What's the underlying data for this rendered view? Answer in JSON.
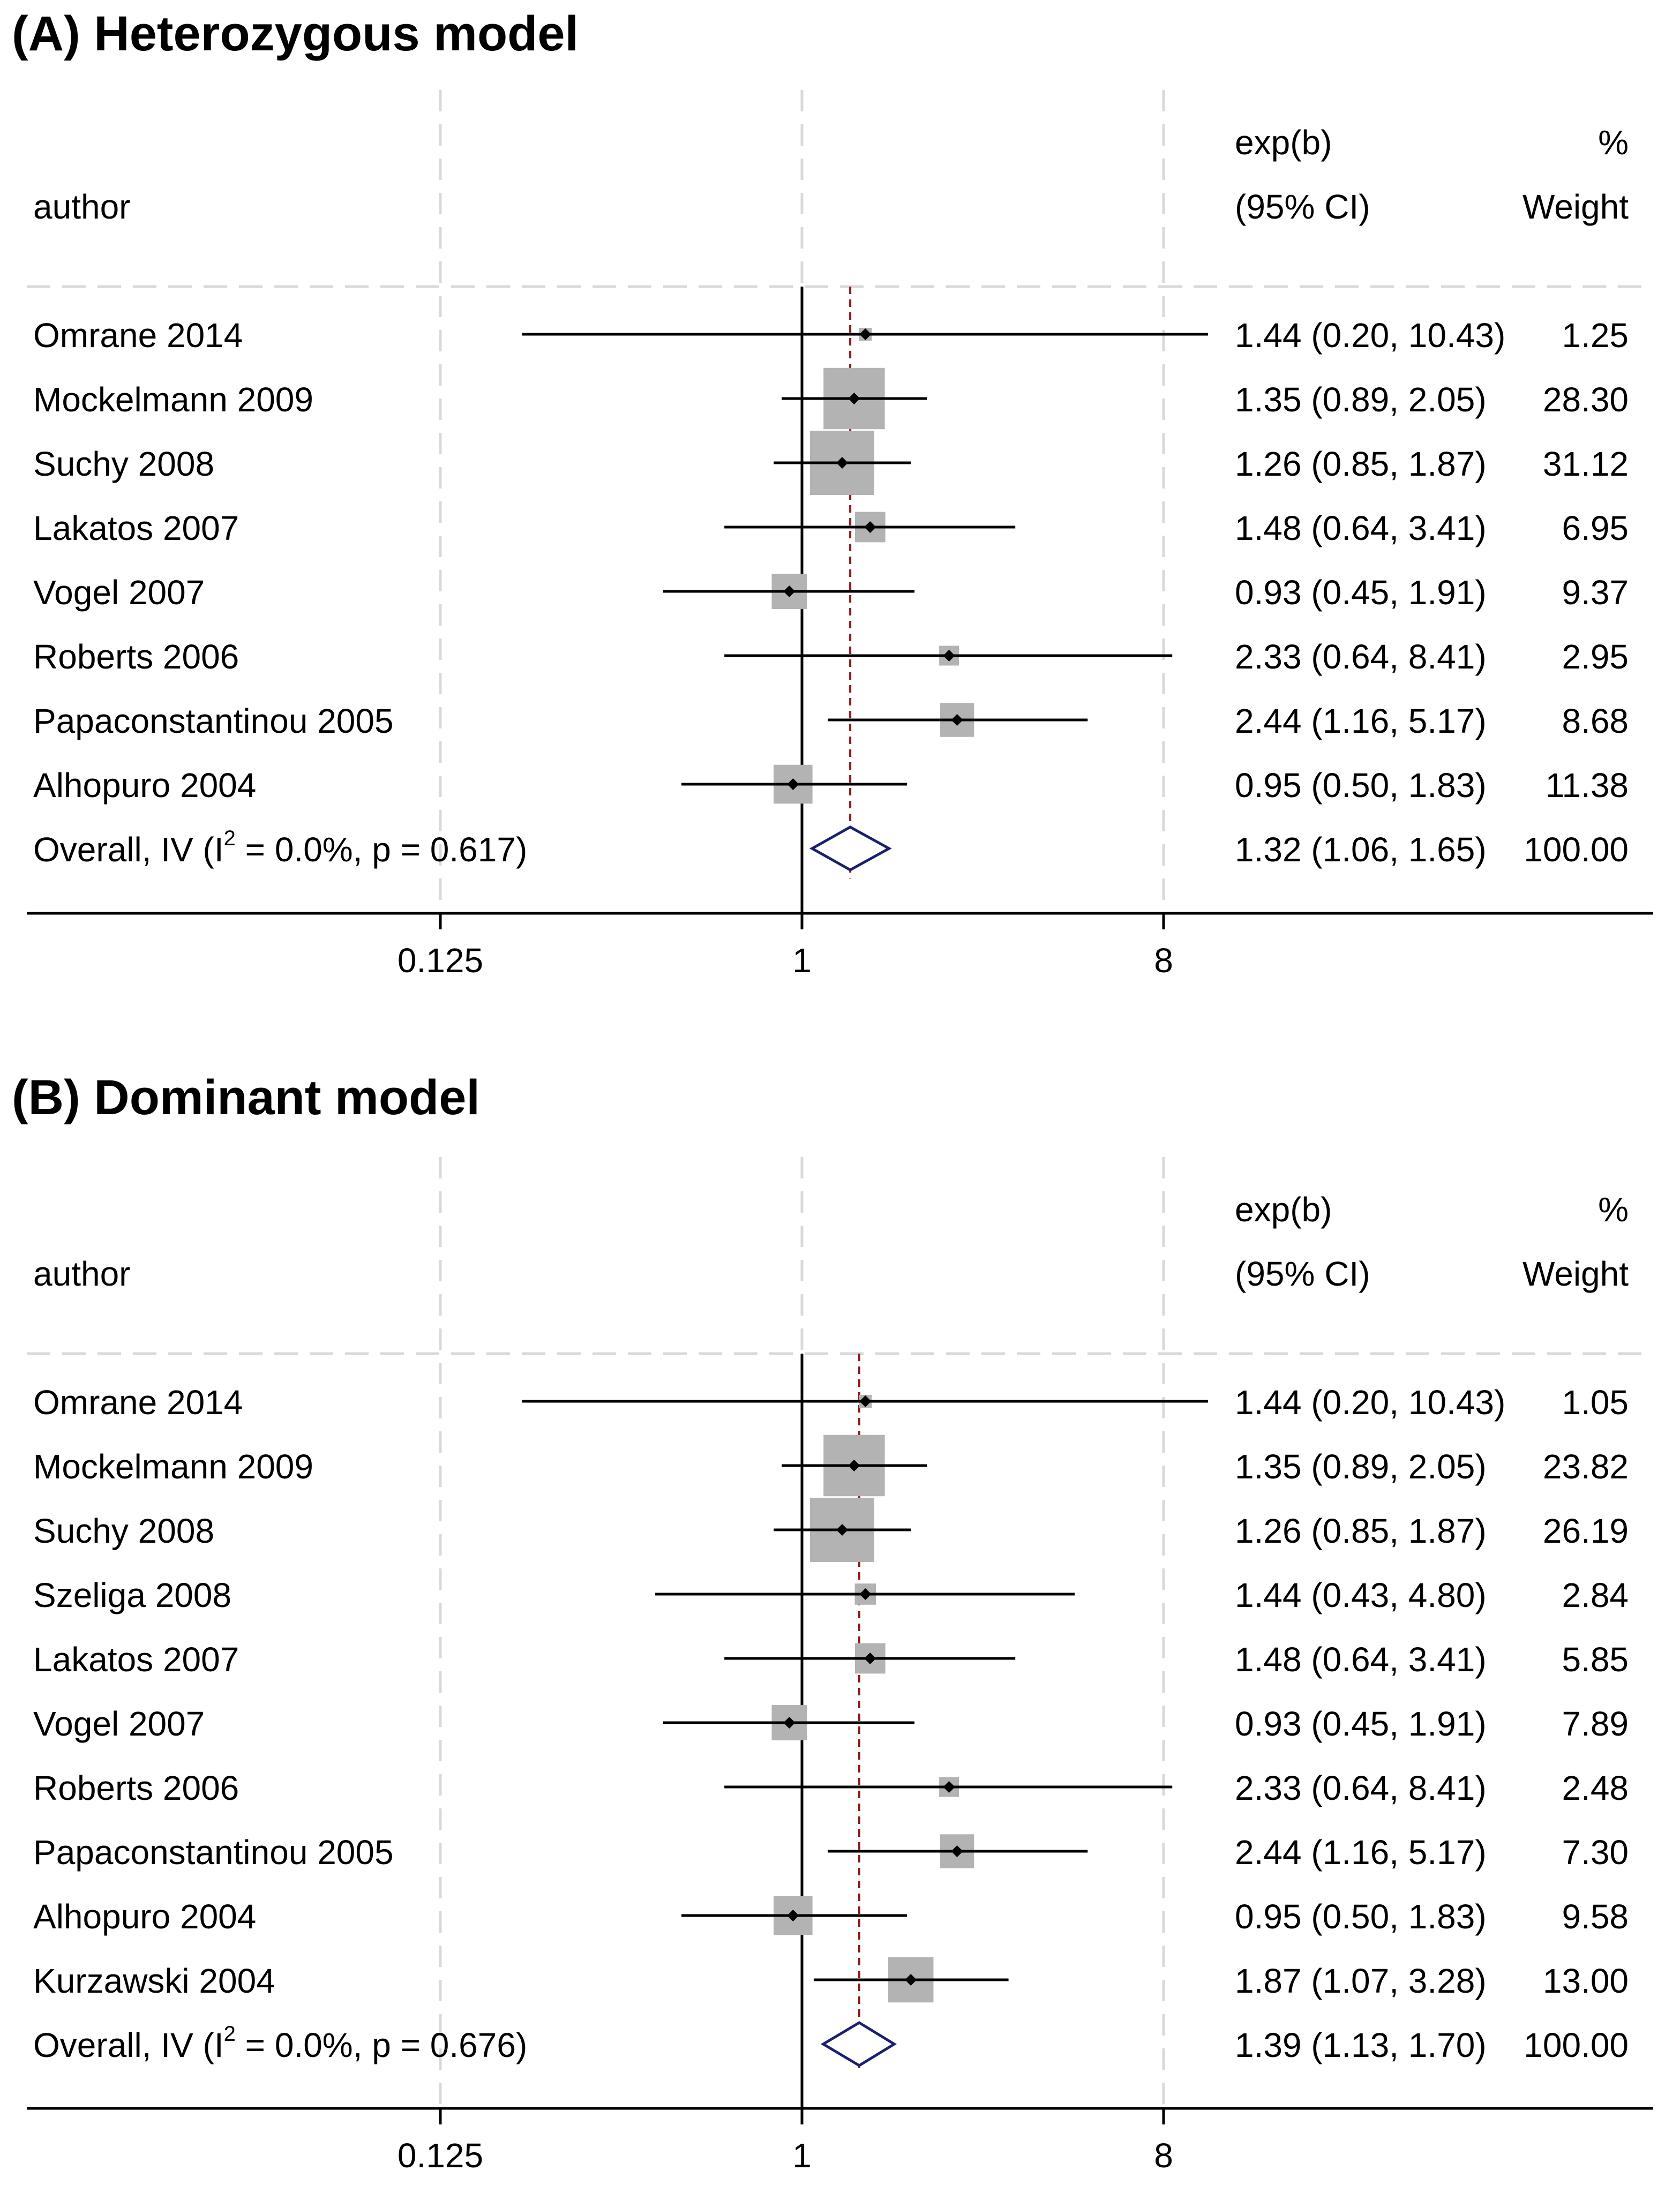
{
  "colors": {
    "ci_line": "#000000",
    "weight_box": "#b3b3b3",
    "point": "#000000",
    "overall_diamond": "#1a1f6e",
    "overall_line": "#8b1a1a",
    "gridline": "#d9d9d9"
  },
  "chart_data": [
    {
      "type": "forest",
      "title": "(A) Heterozygous model",
      "header": {
        "study_col": "author",
        "effect_col_1": "exp(b)",
        "effect_col_2": "(95% CI)",
        "weight_col_1": "%",
        "weight_col_2": "Weight"
      },
      "x_scale": "log2",
      "xlim": [
        0.0625,
        14
      ],
      "ticks": [
        {
          "value": 0.125,
          "label": "0.125"
        },
        {
          "value": 1,
          "label": "1"
        },
        {
          "value": 8,
          "label": "8"
        }
      ],
      "studies": [
        {
          "author": "Omrane 2014",
          "es": 1.44,
          "lo": 0.2,
          "hi": 10.43,
          "ci_text": "1.44 (0.20, 10.43)",
          "weight": 1.25,
          "weight_text": "1.25"
        },
        {
          "author": "Mockelmann 2009",
          "es": 1.35,
          "lo": 0.89,
          "hi": 2.05,
          "ci_text": "1.35 (0.89, 2.05)",
          "weight": 28.3,
          "weight_text": "28.30"
        },
        {
          "author": "Suchy 2008",
          "es": 1.26,
          "lo": 0.85,
          "hi": 1.87,
          "ci_text": "1.26 (0.85, 1.87)",
          "weight": 31.12,
          "weight_text": "31.12"
        },
        {
          "author": "Lakatos 2007",
          "es": 1.48,
          "lo": 0.64,
          "hi": 3.41,
          "ci_text": "1.48 (0.64, 3.41)",
          "weight": 6.95,
          "weight_text": "6.95"
        },
        {
          "author": "Vogel 2007",
          "es": 0.93,
          "lo": 0.45,
          "hi": 1.91,
          "ci_text": "0.93 (0.45, 1.91)",
          "weight": 9.37,
          "weight_text": "9.37"
        },
        {
          "author": "Roberts 2006",
          "es": 2.33,
          "lo": 0.64,
          "hi": 8.41,
          "ci_text": "2.33 (0.64, 8.41)",
          "weight": 2.95,
          "weight_text": "2.95"
        },
        {
          "author": "Papaconstantinou 2005",
          "es": 2.44,
          "lo": 1.16,
          "hi": 5.17,
          "ci_text": "2.44 (1.16, 5.17)",
          "weight": 8.68,
          "weight_text": "8.68"
        },
        {
          "author": "Alhopuro 2004",
          "es": 0.95,
          "lo": 0.5,
          "hi": 1.83,
          "ci_text": "0.95 (0.50, 1.83)",
          "weight": 11.38,
          "weight_text": "11.38"
        }
      ],
      "overall": {
        "label_pre": "Overall, IV (I",
        "label_sup": "2",
        "label_post": " = 0.0%, p = 0.617)",
        "es": 1.32,
        "lo": 1.06,
        "hi": 1.65,
        "ci_text": "1.32 (1.06, 1.65)",
        "weight_text": "100.00"
      }
    },
    {
      "type": "forest",
      "title": "(B) Dominant model",
      "header": {
        "study_col": "author",
        "effect_col_1": "exp(b)",
        "effect_col_2": "(95% CI)",
        "weight_col_1": "%",
        "weight_col_2": "Weight"
      },
      "x_scale": "log2",
      "xlim": [
        0.0625,
        14
      ],
      "ticks": [
        {
          "value": 0.125,
          "label": "0.125"
        },
        {
          "value": 1,
          "label": "1"
        },
        {
          "value": 8,
          "label": "8"
        }
      ],
      "studies": [
        {
          "author": "Omrane 2014",
          "es": 1.44,
          "lo": 0.2,
          "hi": 10.43,
          "ci_text": "1.44 (0.20, 10.43)",
          "weight": 1.05,
          "weight_text": "1.05"
        },
        {
          "author": "Mockelmann 2009",
          "es": 1.35,
          "lo": 0.89,
          "hi": 2.05,
          "ci_text": "1.35 (0.89, 2.05)",
          "weight": 23.82,
          "weight_text": "23.82"
        },
        {
          "author": "Suchy 2008",
          "es": 1.26,
          "lo": 0.85,
          "hi": 1.87,
          "ci_text": "1.26 (0.85, 1.87)",
          "weight": 26.19,
          "weight_text": "26.19"
        },
        {
          "author": "Szeliga 2008",
          "es": 1.44,
          "lo": 0.43,
          "hi": 4.8,
          "ci_text": "1.44 (0.43, 4.80)",
          "weight": 2.84,
          "weight_text": "2.84"
        },
        {
          "author": "Lakatos 2007",
          "es": 1.48,
          "lo": 0.64,
          "hi": 3.41,
          "ci_text": "1.48 (0.64, 3.41)",
          "weight": 5.85,
          "weight_text": "5.85"
        },
        {
          "author": "Vogel 2007",
          "es": 0.93,
          "lo": 0.45,
          "hi": 1.91,
          "ci_text": "0.93 (0.45, 1.91)",
          "weight": 7.89,
          "weight_text": "7.89"
        },
        {
          "author": "Roberts 2006",
          "es": 2.33,
          "lo": 0.64,
          "hi": 8.41,
          "ci_text": "2.33 (0.64, 8.41)",
          "weight": 2.48,
          "weight_text": "2.48"
        },
        {
          "author": "Papaconstantinou 2005",
          "es": 2.44,
          "lo": 1.16,
          "hi": 5.17,
          "ci_text": "2.44 (1.16, 5.17)",
          "weight": 7.3,
          "weight_text": "7.30"
        },
        {
          "author": "Alhopuro 2004",
          "es": 0.95,
          "lo": 0.5,
          "hi": 1.83,
          "ci_text": "0.95 (0.50, 1.83)",
          "weight": 9.58,
          "weight_text": "9.58"
        },
        {
          "author": "Kurzawski 2004",
          "es": 1.87,
          "lo": 1.07,
          "hi": 3.28,
          "ci_text": "1.87 (1.07, 3.28)",
          "weight": 13.0,
          "weight_text": "13.00"
        }
      ],
      "overall": {
        "label_pre": "Overall, IV (I",
        "label_sup": "2",
        "label_post": " = 0.0%, p = 0.676)",
        "es": 1.39,
        "lo": 1.13,
        "hi": 1.7,
        "ci_text": "1.39 (1.13, 1.70)",
        "weight_text": "100.00"
      }
    }
  ]
}
